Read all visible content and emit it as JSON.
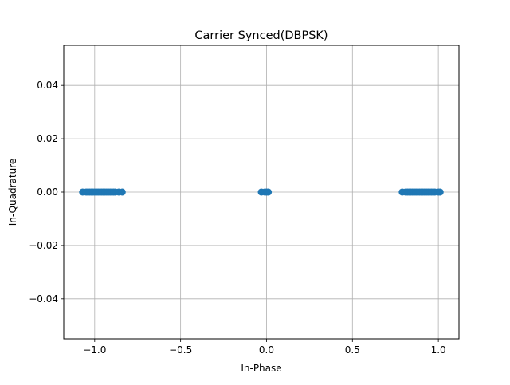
{
  "chart_data": {
    "type": "scatter",
    "title": "Carrier Synced(DBPSK)",
    "xlabel": "In-Phase",
    "ylabel": "In-Quadrature",
    "xlim": [
      -1.18,
      1.12
    ],
    "ylim": [
      -0.055,
      0.055
    ],
    "x_ticks": [
      -1.0,
      -0.5,
      0.0,
      0.5,
      1.0
    ],
    "x_tick_labels": [
      "−1.0",
      "−0.5",
      "0.0",
      "0.5",
      "1.0"
    ],
    "y_ticks": [
      -0.04,
      -0.02,
      0.0,
      0.02,
      0.04
    ],
    "y_tick_labels": [
      "−0.04",
      "−0.02",
      "0.00",
      "0.02",
      "0.04"
    ],
    "grid": true,
    "marker_color": "#1f77b4",
    "series": [
      {
        "points": [
          [
            -1.07,
            0
          ],
          [
            -1.05,
            0
          ],
          [
            -1.04,
            0
          ],
          [
            -1.03,
            0
          ],
          [
            -1.02,
            0
          ],
          [
            -1.01,
            0
          ],
          [
            -1.0,
            0
          ],
          [
            -0.99,
            0
          ],
          [
            -0.98,
            0
          ],
          [
            -0.97,
            0
          ],
          [
            -0.96,
            0
          ],
          [
            -0.95,
            0
          ],
          [
            -0.94,
            0
          ],
          [
            -0.93,
            0
          ],
          [
            -0.92,
            0
          ],
          [
            -0.91,
            0
          ],
          [
            -0.9,
            0
          ],
          [
            -0.89,
            0
          ],
          [
            -0.88,
            0
          ],
          [
            -0.86,
            0
          ],
          [
            -0.84,
            0
          ],
          [
            -0.03,
            0
          ],
          [
            -0.01,
            0
          ],
          [
            0.0,
            0
          ],
          [
            0.01,
            0
          ],
          [
            0.79,
            0
          ],
          [
            0.81,
            0
          ],
          [
            0.82,
            0
          ],
          [
            0.83,
            0
          ],
          [
            0.84,
            0
          ],
          [
            0.85,
            0
          ],
          [
            0.86,
            0
          ],
          [
            0.87,
            0
          ],
          [
            0.88,
            0
          ],
          [
            0.89,
            0
          ],
          [
            0.9,
            0
          ],
          [
            0.91,
            0
          ],
          [
            0.92,
            0
          ],
          [
            0.93,
            0
          ],
          [
            0.94,
            0
          ],
          [
            0.95,
            0
          ],
          [
            0.96,
            0
          ],
          [
            0.97,
            0
          ],
          [
            0.98,
            0
          ],
          [
            1.0,
            0
          ],
          [
            1.01,
            0
          ]
        ]
      }
    ]
  }
}
